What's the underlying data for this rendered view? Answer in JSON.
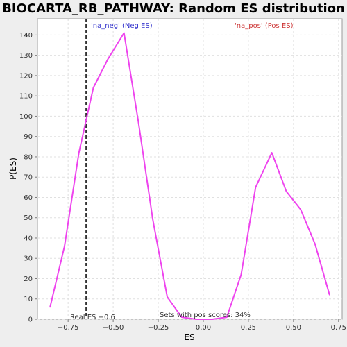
{
  "chart_data": {
    "type": "line",
    "title": "BIOCARTA_RB_PATHWAY: Random ES distribution",
    "xlabel": "ES",
    "ylabel": "P(ES)",
    "xlim": [
      -0.92,
      0.77
    ],
    "ylim": [
      0,
      148
    ],
    "x_ticks": [
      -0.75,
      -0.5,
      -0.25,
      0.0,
      0.25,
      0.5,
      0.75
    ],
    "x_tick_labels": [
      "−0.75",
      "−0.50",
      "−0.25",
      "0.00",
      "0.25",
      "0.50",
      "0.75"
    ],
    "y_ticks": [
      0,
      10,
      20,
      30,
      40,
      50,
      60,
      70,
      80,
      90,
      100,
      110,
      120,
      130,
      140
    ],
    "y_tick_labels": [
      "0",
      "10",
      "20",
      "30",
      "40",
      "50",
      "60",
      "70",
      "80",
      "90",
      "100",
      "110",
      "120",
      "130",
      "140"
    ],
    "grid": true,
    "series": [
      {
        "color": "#ee44ee",
        "x": [
          -0.85,
          -0.77,
          -0.69,
          -0.61,
          -0.53,
          -0.44,
          -0.36,
          -0.28,
          -0.2,
          -0.12,
          -0.04,
          0.05,
          0.13,
          0.21,
          0.29,
          0.38,
          0.46,
          0.54,
          0.62,
          0.7
        ],
        "y": [
          6,
          36,
          82,
          114,
          128,
          141,
          97,
          49,
          11,
          1,
          0,
          0,
          1,
          22,
          65,
          82,
          63,
          54,
          37,
          12
        ]
      }
    ],
    "real_es": -0.65,
    "annotations": {
      "neg_label": "'na_neg' (Neg ES)",
      "pos_label": "'na_pos' (Pos ES)",
      "real_es_label": "Real ES −0.6",
      "sets_label": "Sets with pos scores: 34%"
    },
    "colors": {
      "neg_label": "#3333cc",
      "pos_label": "#cc3333",
      "line": "#ee44ee",
      "grid": "#e0e0e0",
      "marker": "#333333"
    }
  }
}
